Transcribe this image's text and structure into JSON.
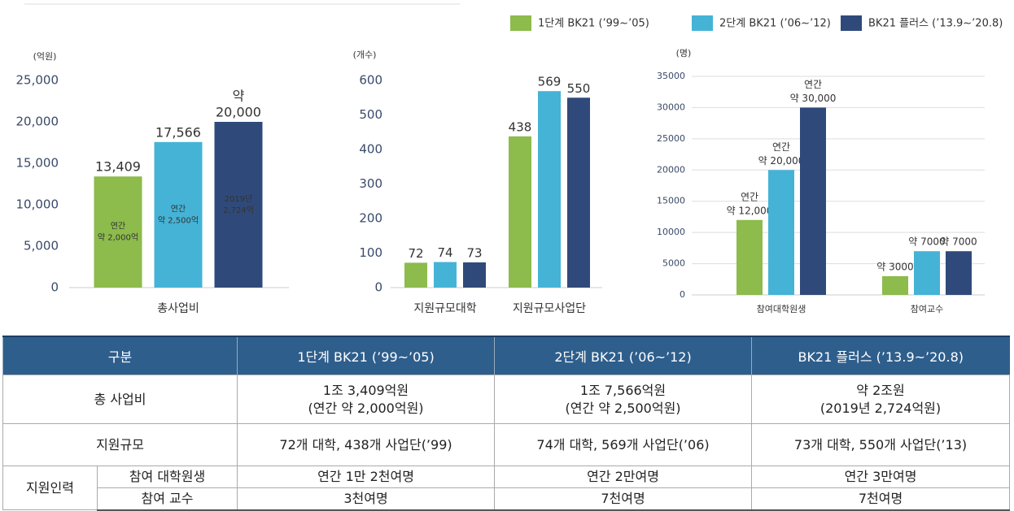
{
  "chart_data": [
    {
      "type": "bar",
      "unit": "(억원)",
      "categories": [
        "총사업비"
      ],
      "series": [
        {
          "name": "1단계 BK21 (’99~’05)",
          "color": "#8dbb4c",
          "values": [
            13409
          ],
          "value_labels": [
            [
              "13,409"
            ]
          ],
          "inner_label": [
            "연간",
            "약 2,000억"
          ]
        },
        {
          "name": "2단계 BK21 (’06~’12)",
          "color": "#45b3d6",
          "values": [
            17566
          ],
          "value_labels": [
            [
              "17,566"
            ]
          ],
          "inner_label": [
            "연간",
            "약 2,500억"
          ]
        },
        {
          "name": "BK21 플러스 (’13.9~’20.8)",
          "color": "#2f4a7a",
          "values": [
            20000
          ],
          "value_labels": [
            [
              "약",
              "20,000"
            ]
          ],
          "inner_label": [
            "2019년",
            "2,724억"
          ]
        }
      ],
      "ylim": [
        0,
        25000
      ],
      "yticks": [
        0,
        {
          "value": 5000,
          "label": "5,000"
        },
        {
          "value": 10000,
          "label": "10,000"
        },
        {
          "value": 15000,
          "label": "15,000"
        },
        {
          "value": 20000,
          "label": "20,000"
        },
        {
          "value": 25000,
          "label": "25,000"
        }
      ],
      "grid": false
    },
    {
      "type": "bar",
      "unit": "(개수)",
      "categories": [
        "지원규모대학",
        "지원규모사업단"
      ],
      "series": [
        {
          "name": "1단계 BK21 (’99~’05)",
          "color": "#8dbb4c",
          "values": [
            72,
            438
          ],
          "value_labels": [
            [
              "72"
            ],
            [
              "438"
            ]
          ]
        },
        {
          "name": "2단계 BK21 (’06~’12)",
          "color": "#45b3d6",
          "values": [
            74,
            569
          ],
          "value_labels": [
            [
              "74"
            ],
            [
              "569"
            ]
          ]
        },
        {
          "name": "BK21 플러스 (’13.9~’20.8)",
          "color": "#2f4a7a",
          "values": [
            73,
            550
          ],
          "value_labels": [
            [
              "73"
            ],
            [
              "550"
            ]
          ]
        }
      ],
      "ylim": [
        0,
        600
      ],
      "yticks": [
        0,
        100,
        200,
        300,
        400,
        500,
        600
      ],
      "grid": false
    },
    {
      "type": "bar",
      "unit": "(명)",
      "categories": [
        "참여대학원생",
        "참여교수"
      ],
      "series": [
        {
          "name": "1단계 BK21 (’99~’05)",
          "color": "#8dbb4c",
          "values": [
            12000,
            3000
          ],
          "value_labels": [
            [
              "연간",
              "약 12,000"
            ],
            [
              "약 3000"
            ]
          ]
        },
        {
          "name": "2단계 BK21 (’06~’12)",
          "color": "#45b3d6",
          "values": [
            20000,
            7000
          ],
          "value_labels": [
            [
              "연간",
              "약 20,000"
            ],
            [
              "약 7000"
            ]
          ]
        },
        {
          "name": "BK21 플러스 (’13.9~’20.8)",
          "color": "#2f4a7a",
          "values": [
            30000,
            7000
          ],
          "value_labels": [
            [
              "연간",
              "약 30,000"
            ],
            [
              "약 7000"
            ]
          ]
        }
      ],
      "ylim": [
        0,
        35000
      ],
      "yticks": [
        0,
        5000,
        10000,
        15000,
        20000,
        25000,
        30000,
        35000
      ],
      "grid": true
    }
  ],
  "table": {
    "header": [
      "구분",
      "1단계 BK21 (’99~’05)",
      "2단계 BK21 (’06~’12)",
      "BK21 플러스 (’13.9~’20.8)"
    ],
    "rows": [
      [
        "총 사업비",
        [
          "1조 3,409억원",
          "(연간 약 2,000억원)"
        ],
        [
          "1조 7,566억원",
          "(연간 약 2,500억원)"
        ],
        [
          "약 2조원",
          "(2019년 2,724억원)"
        ]
      ],
      [
        "지원규모",
        "72개 대학, 438개 사업단(’99)",
        "74개 대학, 569개 사업단(’06)",
        "73개 대학, 550개 사업단(’13)"
      ]
    ],
    "group": {
      "label": "지원인력",
      "rows": [
        [
          "참여 대학원생",
          "연간 1만 2천여명",
          "연간 2만여명",
          "연간 3만여명"
        ],
        [
          "참여 교수",
          "3천여명",
          "7천여명",
          "7천여명"
        ]
      ]
    }
  }
}
